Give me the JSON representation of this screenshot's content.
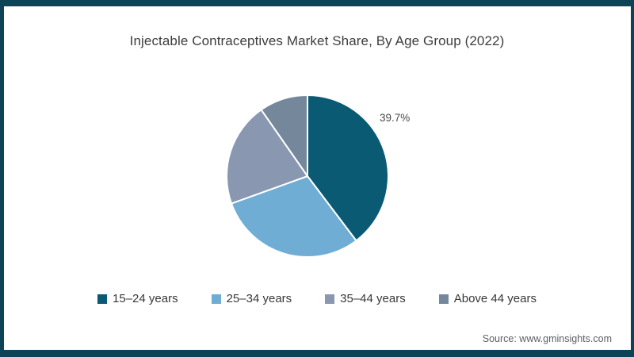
{
  "frame": {
    "border_color": "#0d4356"
  },
  "header": {
    "title": "Injectable Contraceptives Market Share, By Age Group (2022)"
  },
  "chart_data": {
    "type": "pie",
    "title": "Injectable Contraceptives Market Share, By Age Group (2022)",
    "labels": [
      "15–24 years",
      "25–34 years",
      "35–44 years",
      "Above 44 years"
    ],
    "values": [
      39.7,
      29.8,
      20.8,
      9.7
    ],
    "colors": [
      "#0a5a74",
      "#6fadd4",
      "#8a97b1",
      "#75879b"
    ],
    "percent_label": "39.7%",
    "labeled_slice": "15–24 years",
    "start_angle_deg": 0,
    "direction": "clockwise",
    "slice_stroke_color": "#ffffff",
    "legend_position": "bottom"
  },
  "source": {
    "text": "Source: www.gminsights.com"
  }
}
